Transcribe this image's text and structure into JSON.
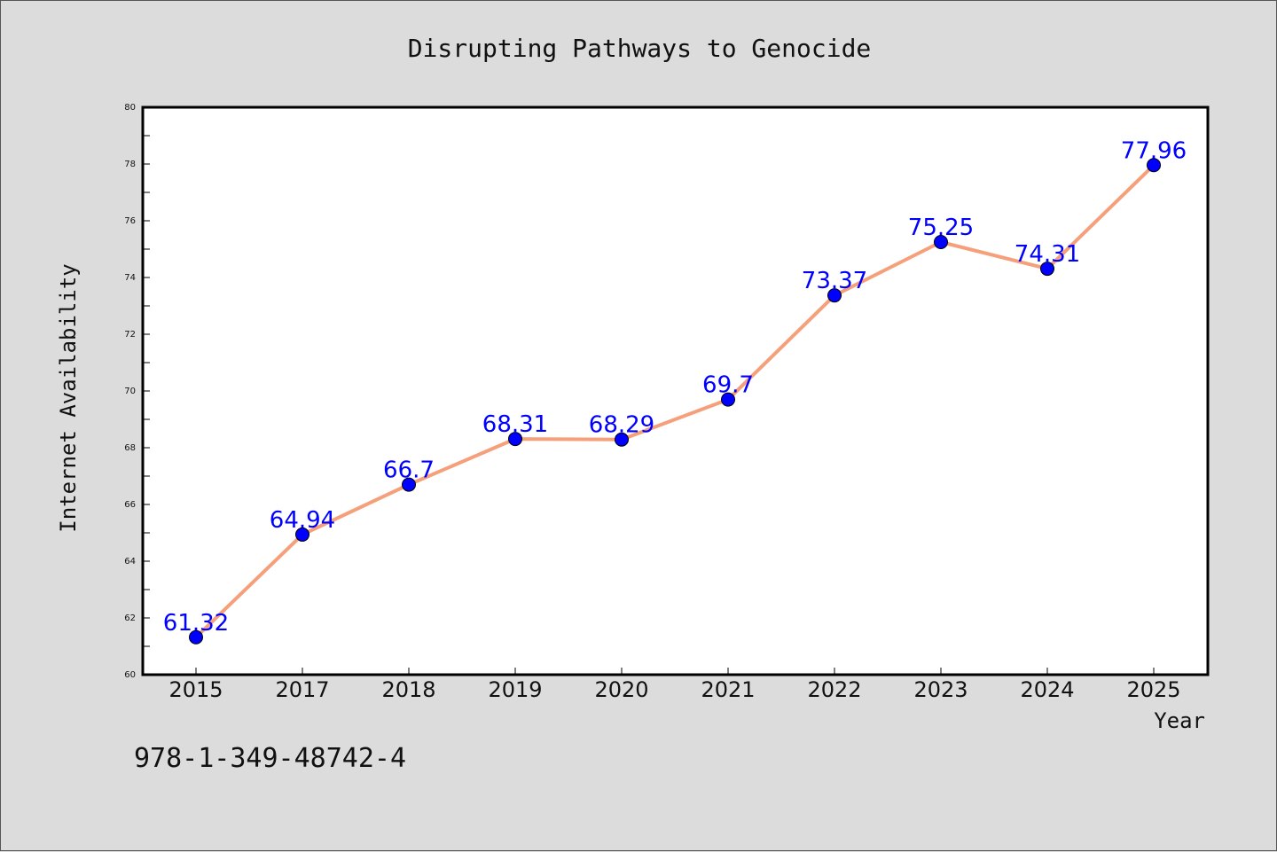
{
  "chart_data": {
    "type": "line",
    "title": "Disrupting Pathways to Genocide",
    "xlabel": "Year",
    "ylabel": "Internet Availability",
    "categories": [
      "2015",
      "2017",
      "2018",
      "2019",
      "2020",
      "2021",
      "2022",
      "2023",
      "2024",
      "2025"
    ],
    "series": [
      {
        "values": [
          61.32,
          64.94,
          66.7,
          68.31,
          68.29,
          69.7,
          73.37,
          75.25,
          74.31,
          77.96
        ],
        "line_color": "#f5a07a",
        "marker_color": "#0000ff"
      }
    ],
    "data_labels": [
      "61.32",
      "64.94",
      "66.7",
      "68.31",
      "68.29",
      "69.7",
      "73.37",
      "75.25",
      "74.31",
      "77.96"
    ],
    "ylim": [
      60,
      80
    ],
    "yticks": [
      60,
      62,
      64,
      66,
      68,
      70,
      72,
      74,
      76,
      78,
      80
    ],
    "grid": false,
    "legend": "none",
    "label_color": "#0000ff"
  },
  "footer": {
    "isbn": "978-1-349-48742-4"
  }
}
